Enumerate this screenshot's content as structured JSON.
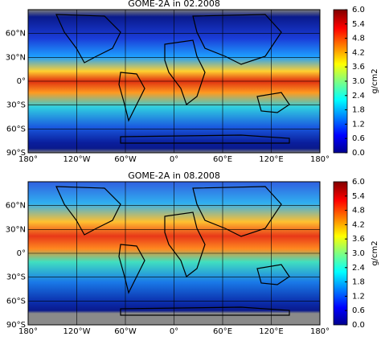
{
  "panels": [
    {
      "title": "GOME-2A in 02.2008",
      "lat_labels": [
        "60°N",
        "30°N",
        "0°",
        "30°S",
        "60°S",
        "90°S"
      ],
      "lon_labels": [
        "180°",
        "120°W",
        "60°W",
        "0°",
        "60°E",
        "120°E",
        "180°"
      ]
    },
    {
      "title": "GOME-2A in 08.2008",
      "lat_labels": [
        "60°N",
        "30°N",
        "0°",
        "30°S",
        "60°S",
        "90°S"
      ],
      "lon_labels": [
        "180°",
        "120°W",
        "60°W",
        "0°",
        "60°E",
        "120°E",
        "180°"
      ]
    }
  ],
  "colorbar": {
    "ticks": [
      "0.0",
      "0.6",
      "1.2",
      "1.8",
      "2.4",
      "3.0",
      "3.6",
      "4.2",
      "4.8",
      "5.4",
      "6.0"
    ],
    "unit": "g/cm2"
  }
}
